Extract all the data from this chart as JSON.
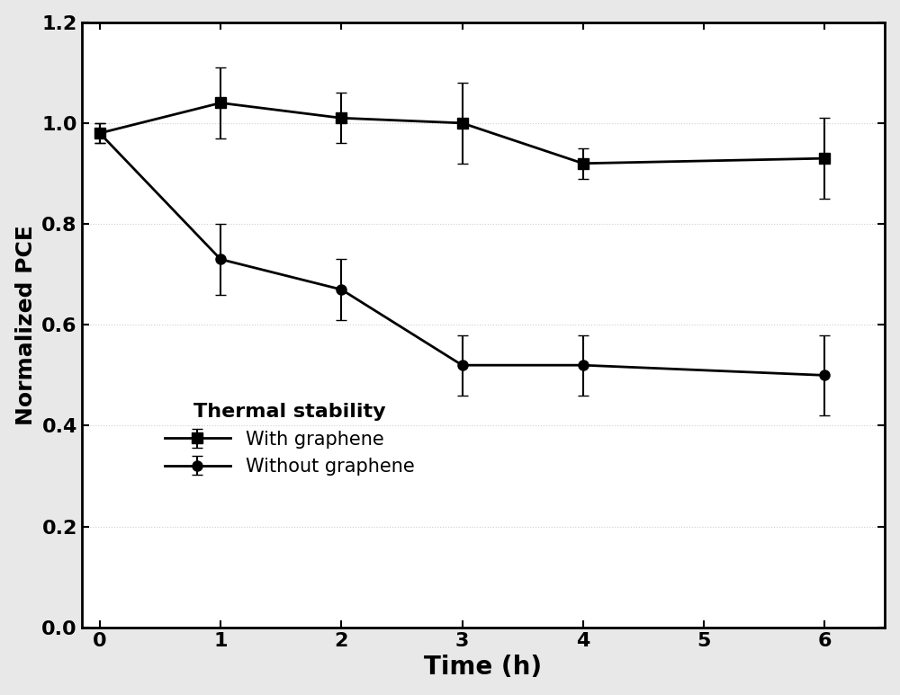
{
  "with_graphene_x": [
    0,
    1,
    2,
    3,
    4,
    6
  ],
  "with_graphene_y": [
    0.98,
    1.04,
    1.01,
    1.0,
    0.92,
    0.93
  ],
  "with_graphene_yerr": [
    0.02,
    0.07,
    0.05,
    0.08,
    0.03,
    0.08
  ],
  "without_graphene_x": [
    0,
    1,
    2,
    3,
    4,
    6
  ],
  "without_graphene_y": [
    0.98,
    0.73,
    0.67,
    0.52,
    0.52,
    0.5
  ],
  "without_graphene_yerr": [
    0.02,
    0.07,
    0.06,
    0.06,
    0.06,
    0.08
  ],
  "xlabel": "Time (h)",
  "ylabel": "Normalized PCE",
  "legend_title": "Thermal stability",
  "legend_label_1": "With graphene",
  "legend_label_2": "Without graphene",
  "xlim_left": -0.15,
  "xlim_right": 6.5,
  "ylim": [
    0.0,
    1.2
  ],
  "xticks": [
    0,
    1,
    2,
    3,
    4,
    5,
    6
  ],
  "yticks": [
    0.0,
    0.2,
    0.4,
    0.6,
    0.8,
    1.0,
    1.2
  ],
  "line_color": "#000000",
  "marker_square": "s",
  "marker_circle": "o",
  "marker_size": 8,
  "linewidth": 2.0,
  "capsize": 4,
  "elinewidth": 1.5,
  "xlabel_fontsize": 20,
  "ylabel_fontsize": 18,
  "tick_fontsize": 16,
  "legend_fontsize": 15,
  "legend_title_fontsize": 15,
  "outer_bg_color": "#e8e8e8",
  "plot_bg_color": "#ffffff",
  "grid_color": "#d0d0d0",
  "grid_style": ":"
}
